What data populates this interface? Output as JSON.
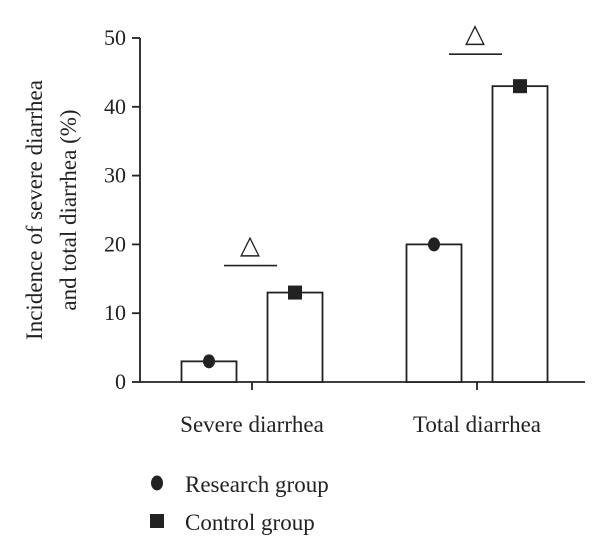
{
  "chart_data": {
    "type": "bar",
    "ylabel": [
      "Incidence of severe diarrhea",
      "and total diarrhea (%)"
    ],
    "ylim": [
      0,
      50
    ],
    "yticks": [
      "0",
      "10",
      "20",
      "30",
      "40",
      "50"
    ],
    "categories": [
      "Severe diarrhea",
      "Total diarrhea"
    ],
    "series": [
      {
        "name": "Research group",
        "marker": "circle",
        "values": [
          3,
          20
        ]
      },
      {
        "name": "Control group",
        "marker": "square",
        "values": [
          13,
          43
        ]
      }
    ],
    "annotations": [
      "△",
      "△"
    ],
    "legend_position": "bottom-left",
    "grid": false,
    "colors": {
      "bar_fill": "#ffffff",
      "stroke": "#222222",
      "marker": "#222222"
    }
  }
}
